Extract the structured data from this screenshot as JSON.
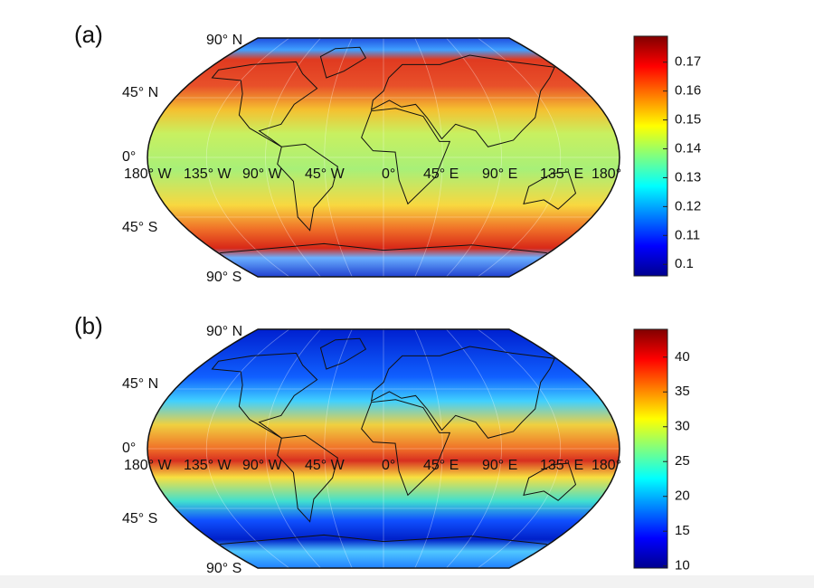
{
  "panels": [
    {
      "label": "(a)",
      "lat_labels": [
        "90° N",
        "45° N",
        "0°",
        "45° S",
        "90° S"
      ],
      "lon_labels": [
        "180° W",
        "135° W",
        "90° W",
        "45° W",
        "0°",
        "45° E",
        "90° E",
        "135° E",
        "180°"
      ],
      "colorbar": {
        "range": [
          0.096,
          0.179
        ],
        "ticks": [
          0.1,
          0.11,
          0.12,
          0.13,
          0.14,
          0.15,
          0.16,
          0.17
        ]
      }
    },
    {
      "label": "(b)",
      "lat_labels": [
        "90° N",
        "45° N",
        "0°",
        "45° S",
        "90° S"
      ],
      "lon_labels": [
        "180° W",
        "135° W",
        "90° W",
        "45° W",
        "0°",
        "45° E",
        "90° E",
        "135° E",
        "180°"
      ],
      "colorbar": {
        "range": [
          9.7,
          44
        ],
        "ticks": [
          10,
          15,
          20,
          25,
          30,
          35,
          40
        ]
      }
    }
  ]
}
